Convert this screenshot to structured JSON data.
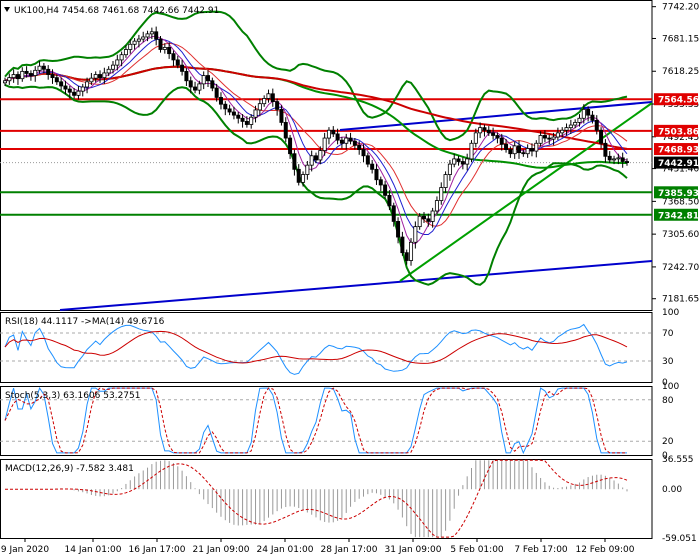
{
  "chart_data": [
    {
      "type": "candlestick",
      "title": "UK100,H4  7454.68 7461.68 7442.66 7442.91",
      "ylim": [
        7160,
        7755
      ],
      "y_ticks": [
        "7742.20",
        "7681.15",
        "7618.25",
        "7555.35",
        "7492.45",
        "7431.40",
        "7368.50",
        "7305.60",
        "7242.70",
        "7181.65"
      ],
      "x_ticks": [
        "9 Jan 2020",
        "14 Jan 01:00",
        "16 Jan 17:00",
        "21 Jan 09:00",
        "24 Jan 01:00",
        "28 Jan 17:00",
        "31 Jan 09:00",
        "5 Feb 01:00",
        "7 Feb 17:00",
        "12 Feb 09:00"
      ],
      "price_tags": [
        {
          "label": "7564.56",
          "value": 7564.56,
          "color": "#e00000"
        },
        {
          "label": "7503.86",
          "value": 7503.86,
          "color": "#e00000"
        },
        {
          "label": "7468.93",
          "value": 7468.93,
          "color": "#e00000"
        },
        {
          "label": "7442.91",
          "value": 7442.91,
          "color": "#000000"
        },
        {
          "label": "7385.93",
          "value": 7385.93,
          "color": "#008000"
        },
        {
          "label": "7342.81",
          "value": 7342.81,
          "color": "#008000"
        }
      ],
      "horizontal_lines": [
        {
          "value": 7564.56,
          "color": "#e00000"
        },
        {
          "value": 7503.86,
          "color": "#e00000"
        },
        {
          "value": 7468.93,
          "color": "#e00000"
        },
        {
          "value": 7385.93,
          "color": "#008000"
        },
        {
          "value": 7342.81,
          "color": "#008000"
        }
      ],
      "closes": [
        7600,
        7606,
        7612,
        7604,
        7618,
        7614,
        7610,
        7620,
        7628,
        7622,
        7612,
        7606,
        7598,
        7590,
        7584,
        7578,
        7572,
        7580,
        7588,
        7598,
        7605,
        7612,
        7606,
        7615,
        7622,
        7630,
        7640,
        7650,
        7660,
        7670,
        7676,
        7680,
        7684,
        7690,
        7694,
        7680,
        7660,
        7664,
        7652,
        7640,
        7630,
        7618,
        7600,
        7588,
        7582,
        7594,
        7610,
        7600,
        7586,
        7568,
        7555,
        7546,
        7540,
        7534,
        7528,
        7522,
        7516,
        7530,
        7544,
        7556,
        7566,
        7575,
        7560,
        7545,
        7520,
        7490,
        7460,
        7430,
        7405,
        7420,
        7438,
        7456,
        7448,
        7466,
        7490,
        7505,
        7498,
        7486,
        7480,
        7490,
        7484,
        7476,
        7468,
        7456,
        7440,
        7430,
        7410,
        7400,
        7380,
        7360,
        7330,
        7300,
        7270,
        7255,
        7290,
        7320,
        7340,
        7335,
        7330,
        7350,
        7370,
        7395,
        7420,
        7440,
        7450,
        7445,
        7440,
        7450,
        7480,
        7500,
        7510,
        7505,
        7500,
        7495,
        7490,
        7478,
        7468,
        7460,
        7475,
        7462,
        7460,
        7470,
        7465,
        7480,
        7495,
        7490,
        7488,
        7492,
        7500,
        7505,
        7510,
        7515,
        7520,
        7528,
        7545,
        7534,
        7524,
        7505,
        7480,
        7455,
        7448,
        7450,
        7452,
        7445,
        7442.91
      ],
      "rsi": {
        "name": "RSI(18) 44.1117 ->MA(14) 49.6716",
        "ylim": [
          0,
          100
        ],
        "y_ticks": [
          "100",
          "70",
          "30",
          "0"
        ],
        "levels": [
          70,
          30
        ]
      },
      "stochastic": {
        "name": "Stoch(5,3,3) 63.1606 53.2751",
        "ylim": [
          0,
          100
        ],
        "y_ticks": [
          "100",
          "80",
          "20",
          "0"
        ],
        "levels": [
          80,
          20
        ]
      },
      "macd": {
        "name": "MACD(12,26,9) -7.582 3.481",
        "ylim": [
          -59.051,
          36.555
        ],
        "y_ticks": [
          "36.555",
          "0.00",
          "-59.051"
        ]
      }
    }
  ]
}
